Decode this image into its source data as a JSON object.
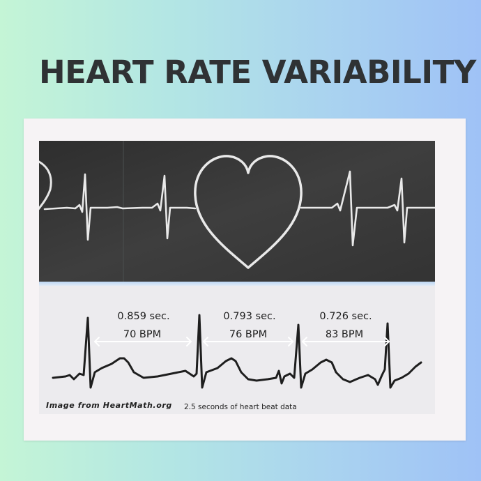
{
  "title": "HEART RATE VARIABILITY",
  "chalkboard": {
    "alt": "chalkboard drawing of a heart with heartbeat line"
  },
  "ecg": {
    "intervals": [
      {
        "seconds": "0.859 sec.",
        "bpm": "70 BPM"
      },
      {
        "seconds": "0.793 sec.",
        "bpm": "76 BPM"
      },
      {
        "seconds": "0.726 sec.",
        "bpm": "83 BPM"
      }
    ],
    "credit": "Image from HeartMath.org",
    "caption": "2.5 seconds of heart beat data"
  },
  "colors": {
    "title": "#2f3234",
    "chalk": "#e9e9e9",
    "board": "#3a3a3a",
    "trace": "#1e1e1e",
    "arrow": "#ffffff"
  }
}
